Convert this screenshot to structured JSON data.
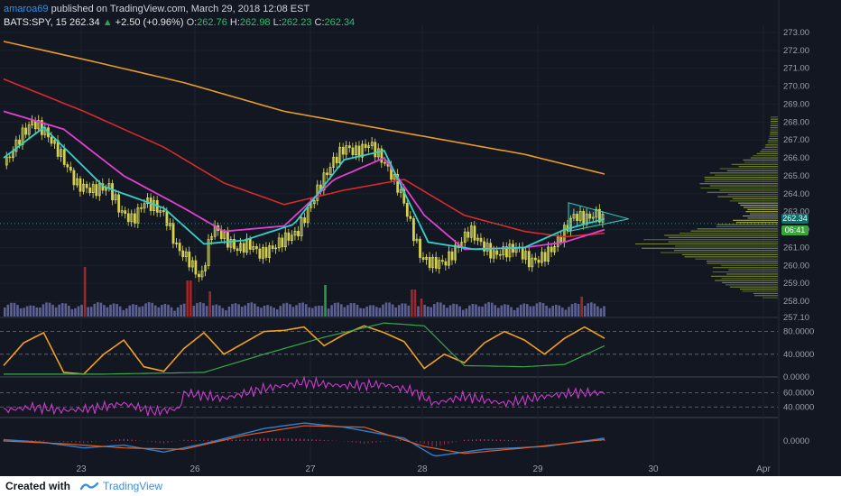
{
  "header": {
    "publisher": "amaroa69",
    "published_text": " published on TradingView.com, March 29, 2018 12:08 EST",
    "symbol": "BATS:SPY, 15",
    "last": "262.34",
    "arrow": "▲",
    "change": "+2.50 (+0.96%)",
    "o_label": "O:",
    "o": "262.76",
    "h_label": "H:",
    "h": "262.98",
    "l_label": "L:",
    "l": "262.23",
    "c_label": "C:",
    "c": "262.34"
  },
  "price_badge": "262.34",
  "time_badge": "06:41",
  "footer": {
    "created": "Created with",
    "brand": "TradingView"
  },
  "colors": {
    "background": "#131722",
    "bull": "#eef06a",
    "bear": "#d8d24a",
    "ema_fast": "#33d1cc",
    "ema_mid": "#e040d0",
    "ema_slow": "#d92a2a",
    "ema_long": "#e89a2a",
    "stoch": "#f0a020",
    "rsi": "#c83cc8",
    "macd": "#2f7fd0",
    "signal": "#e06020"
  },
  "chart_data": [
    {
      "type": "candlestick",
      "symbol": "BATS:SPY",
      "interval": "15",
      "y_ticks": [
        "273.00",
        "272.00",
        "271.00",
        "270.00",
        "269.00",
        "268.00",
        "267.00",
        "266.00",
        "265.00",
        "264.00",
        "263.00",
        "262.00",
        "261.00",
        "260.00",
        "259.00",
        "258.00",
        "257.10"
      ],
      "ylim": [
        257.1,
        273.3
      ],
      "x_ticks": [
        "23",
        "26",
        "27",
        "28",
        "29",
        "30",
        "Apr"
      ],
      "close_path": [
        [
          0,
          265.6
        ],
        [
          8,
          267.2
        ],
        [
          14,
          268.0
        ],
        [
          20,
          267.5
        ],
        [
          28,
          266.2
        ],
        [
          36,
          264.5
        ],
        [
          44,
          264.2
        ],
        [
          52,
          264.4
        ],
        [
          58,
          263.0
        ],
        [
          64,
          262.5
        ],
        [
          70,
          263.6
        ],
        [
          76,
          263.2
        ],
        [
          80,
          262.8
        ],
        [
          86,
          261.0
        ],
        [
          92,
          260.3
        ],
        [
          98,
          259.2
        ],
        [
          104,
          262.2
        ],
        [
          110,
          261.5
        ],
        [
          116,
          260.9
        ],
        [
          122,
          261.2
        ],
        [
          128,
          260.6
        ],
        [
          134,
          261.0
        ],
        [
          140,
          261.5
        ],
        [
          146,
          261.8
        ],
        [
          152,
          263.2
        ],
        [
          158,
          264.6
        ],
        [
          164,
          265.8
        ],
        [
          170,
          266.6
        ],
        [
          176,
          266.3
        ],
        [
          182,
          266.8
        ],
        [
          188,
          266.0
        ],
        [
          192,
          265.3
        ],
        [
          198,
          264.0
        ],
        [
          204,
          261.8
        ],
        [
          208,
          260.4
        ],
        [
          214,
          260.1
        ],
        [
          220,
          260.2
        ],
        [
          226,
          261.0
        ],
        [
          232,
          262.0
        ],
        [
          238,
          261.2
        ],
        [
          244,
          260.6
        ],
        [
          250,
          260.8
        ],
        [
          256,
          261.0
        ],
        [
          262,
          260.2
        ],
        [
          268,
          260.4
        ],
        [
          274,
          261.0
        ],
        [
          280,
          262.0
        ],
        [
          284,
          262.8
        ],
        [
          290,
          262.6
        ],
        [
          296,
          262.9
        ],
        [
          300,
          262.34
        ]
      ],
      "ema_long": [
        [
          0,
          272.5
        ],
        [
          40,
          271.5
        ],
        [
          90,
          270.2
        ],
        [
          140,
          268.6
        ],
        [
          200,
          267.4
        ],
        [
          260,
          266.2
        ],
        [
          300,
          265.1
        ]
      ],
      "ema_slow": [
        [
          0,
          270.4
        ],
        [
          40,
          268.6
        ],
        [
          80,
          266.6
        ],
        [
          110,
          264.6
        ],
        [
          140,
          263.4
        ],
        [
          170,
          264.2
        ],
        [
          200,
          264.8
        ],
        [
          230,
          262.8
        ],
        [
          260,
          261.9
        ],
        [
          280,
          261.6
        ],
        [
          300,
          261.8
        ]
      ],
      "ema_mid": [
        [
          0,
          268.6
        ],
        [
          30,
          267.6
        ],
        [
          60,
          265.0
        ],
        [
          90,
          263.2
        ],
        [
          110,
          261.9
        ],
        [
          140,
          262.2
        ],
        [
          165,
          264.8
        ],
        [
          190,
          266.0
        ],
        [
          210,
          262.8
        ],
        [
          230,
          260.9
        ],
        [
          260,
          261.0
        ],
        [
          280,
          261.3
        ],
        [
          300,
          262.0
        ]
      ],
      "ema_fast": [
        [
          0,
          266.0
        ],
        [
          20,
          267.7
        ],
        [
          50,
          264.4
        ],
        [
          80,
          263.2
        ],
        [
          100,
          261.2
        ],
        [
          120,
          261.4
        ],
        [
          145,
          262.3
        ],
        [
          170,
          265.9
        ],
        [
          190,
          266.4
        ],
        [
          212,
          261.3
        ],
        [
          235,
          260.9
        ],
        [
          260,
          261.0
        ],
        [
          280,
          262.0
        ],
        [
          300,
          262.6
        ]
      ],
      "triangle": [
        [
          282,
          263.5
        ],
        [
          312,
          262.6
        ],
        [
          282,
          261.9
        ]
      ],
      "volume_profile_range": [
        258.2,
        268.4
      ]
    },
    {
      "type": "line",
      "name": "stoch",
      "y_ticks": [
        "80.0000",
        "40.0000",
        "0.0000"
      ],
      "ylim": [
        0,
        100
      ],
      "fast": [
        [
          0,
          20
        ],
        [
          10,
          60
        ],
        [
          20,
          78
        ],
        [
          30,
          8
        ],
        [
          40,
          5
        ],
        [
          50,
          40
        ],
        [
          60,
          65
        ],
        [
          70,
          18
        ],
        [
          80,
          10
        ],
        [
          90,
          50
        ],
        [
          100,
          78
        ],
        [
          110,
          40
        ],
        [
          120,
          60
        ],
        [
          130,
          80
        ],
        [
          140,
          82
        ],
        [
          150,
          88
        ],
        [
          160,
          55
        ],
        [
          170,
          75
        ],
        [
          180,
          90
        ],
        [
          190,
          78
        ],
        [
          200,
          62
        ],
        [
          210,
          15
        ],
        [
          220,
          40
        ],
        [
          230,
          25
        ],
        [
          240,
          60
        ],
        [
          250,
          80
        ],
        [
          260,
          65
        ],
        [
          270,
          40
        ],
        [
          280,
          68
        ],
        [
          290,
          88
        ],
        [
          300,
          68
        ]
      ],
      "slow": [
        [
          0,
          5
        ],
        [
          50,
          5
        ],
        [
          100,
          8
        ],
        [
          130,
          40
        ],
        [
          160,
          70
        ],
        [
          190,
          95
        ],
        [
          210,
          90
        ],
        [
          230,
          20
        ],
        [
          260,
          18
        ],
        [
          280,
          22
        ],
        [
          300,
          55
        ]
      ]
    },
    {
      "type": "line",
      "name": "rsi",
      "y_ticks": [
        "60.0000",
        "40.0000"
      ],
      "ylim": [
        25,
        80
      ],
      "values": [
        [
          0,
          35
        ],
        [
          15,
          40
        ],
        [
          30,
          35
        ],
        [
          45,
          38
        ],
        [
          60,
          45
        ],
        [
          75,
          33
        ],
        [
          88,
          38
        ],
        [
          90,
          60
        ],
        [
          110,
          52
        ],
        [
          130,
          66
        ],
        [
          150,
          75
        ],
        [
          170,
          70
        ],
        [
          190,
          72
        ],
        [
          205,
          62
        ],
        [
          215,
          45
        ],
        [
          230,
          55
        ],
        [
          250,
          45
        ],
        [
          270,
          55
        ],
        [
          285,
          60
        ],
        [
          300,
          60
        ]
      ]
    },
    {
      "type": "line",
      "name": "macd",
      "y_ticks": [
        "0.0000"
      ],
      "ylim": [
        -1.5,
        1.5
      ],
      "macd": [
        [
          0,
          0.1
        ],
        [
          20,
          -0.1
        ],
        [
          40,
          -0.5
        ],
        [
          60,
          -0.3
        ],
        [
          80,
          -0.8
        ],
        [
          100,
          -0.2
        ],
        [
          130,
          0.9
        ],
        [
          150,
          1.3
        ],
        [
          170,
          1.0
        ],
        [
          200,
          0.2
        ],
        [
          215,
          -1.1
        ],
        [
          240,
          -0.6
        ],
        [
          270,
          -0.4
        ],
        [
          300,
          0.2
        ]
      ],
      "signal": [
        [
          0,
          0.0
        ],
        [
          30,
          -0.2
        ],
        [
          60,
          -0.5
        ],
        [
          90,
          -0.6
        ],
        [
          120,
          0.4
        ],
        [
          150,
          1.1
        ],
        [
          180,
          1.0
        ],
        [
          210,
          -0.4
        ],
        [
          230,
          -0.9
        ],
        [
          260,
          -0.5
        ],
        [
          300,
          0.1
        ]
      ]
    }
  ]
}
